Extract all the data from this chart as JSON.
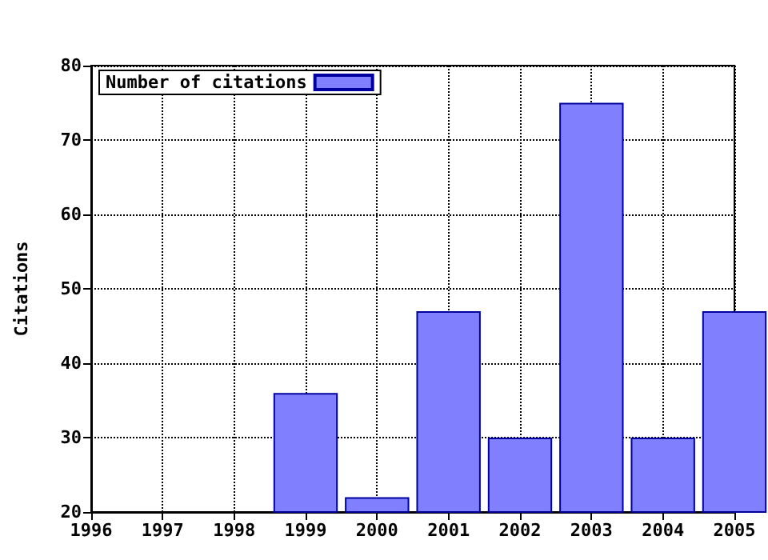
{
  "chart_data": {
    "type": "bar",
    "ylabel": "Citations",
    "x": [
      1999,
      2000,
      2001,
      2002,
      2003,
      2004,
      2005
    ],
    "series": [
      {
        "name": "Number of citations",
        "color": "#8080ff",
        "values": [
          36,
          22,
          47,
          30,
          75,
          30,
          47
        ]
      }
    ],
    "xlim": [
      1996,
      2005
    ],
    "xticks": [
      1996,
      1997,
      1998,
      1999,
      2000,
      2001,
      2002,
      2003,
      2004,
      2005
    ],
    "ylim": [
      20,
      80
    ],
    "yticks": [
      20,
      30,
      40,
      50,
      60,
      70,
      80
    ],
    "grid": true,
    "legend": "top left"
  }
}
